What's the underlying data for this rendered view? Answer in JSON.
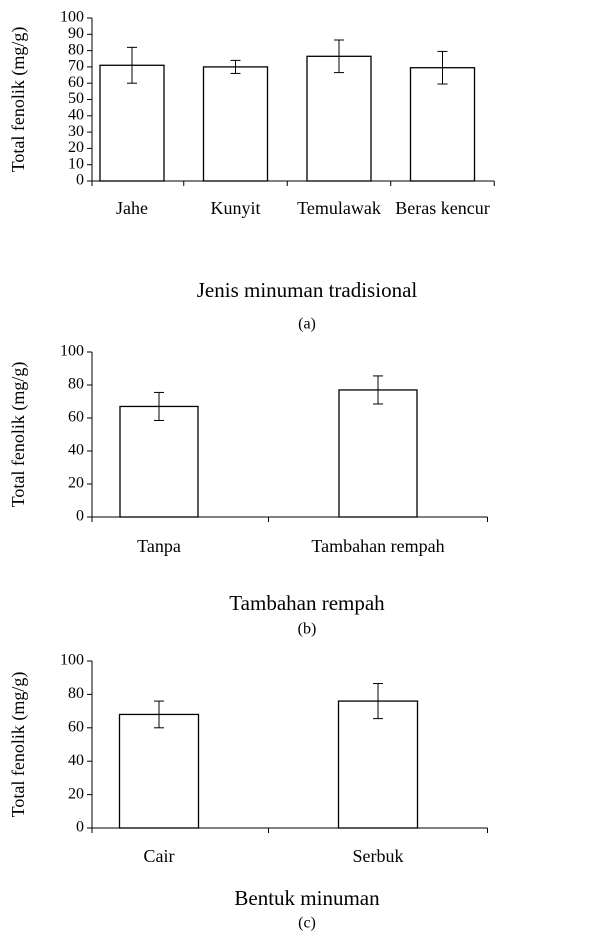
{
  "chart_data": [
    {
      "type": "bar",
      "ylabel": "Total fenolik (mg/g)",
      "xlabel": "Jenis minuman tradisional",
      "caption": "(a)",
      "categories": [
        "Jahe",
        "Kunyit",
        "Temulawak",
        "Beras kencur"
      ],
      "values": [
        71,
        70,
        76.5,
        69.5
      ],
      "errors": [
        11,
        4,
        10,
        10
      ],
      "ylim": [
        0,
        100
      ],
      "yticks": [
        0,
        10,
        20,
        30,
        40,
        50,
        60,
        70,
        80,
        90,
        100
      ],
      "color": "#ffffff"
    },
    {
      "type": "bar",
      "ylabel": "Total fenolik (mg/g)",
      "xlabel": "Tambahan rempah",
      "caption": "(b)",
      "categories": [
        "Tanpa",
        "Tambahan rempah"
      ],
      "values": [
        67,
        77
      ],
      "errors": [
        8.5,
        8.5
      ],
      "ylim": [
        0,
        100
      ],
      "yticks": [
        0,
        20,
        40,
        60,
        80,
        100
      ],
      "color": "#ffffff"
    },
    {
      "type": "bar",
      "ylabel": "Total fenolik (mg/g)",
      "xlabel": "Bentuk minuman",
      "caption": "(c)",
      "categories": [
        "Cair",
        "Serbuk"
      ],
      "values": [
        68,
        76
      ],
      "errors": [
        8,
        10.5
      ],
      "ylim": [
        0,
        100
      ],
      "yticks": [
        0,
        20,
        40,
        60,
        80,
        100
      ],
      "color": "#ffffff"
    }
  ]
}
